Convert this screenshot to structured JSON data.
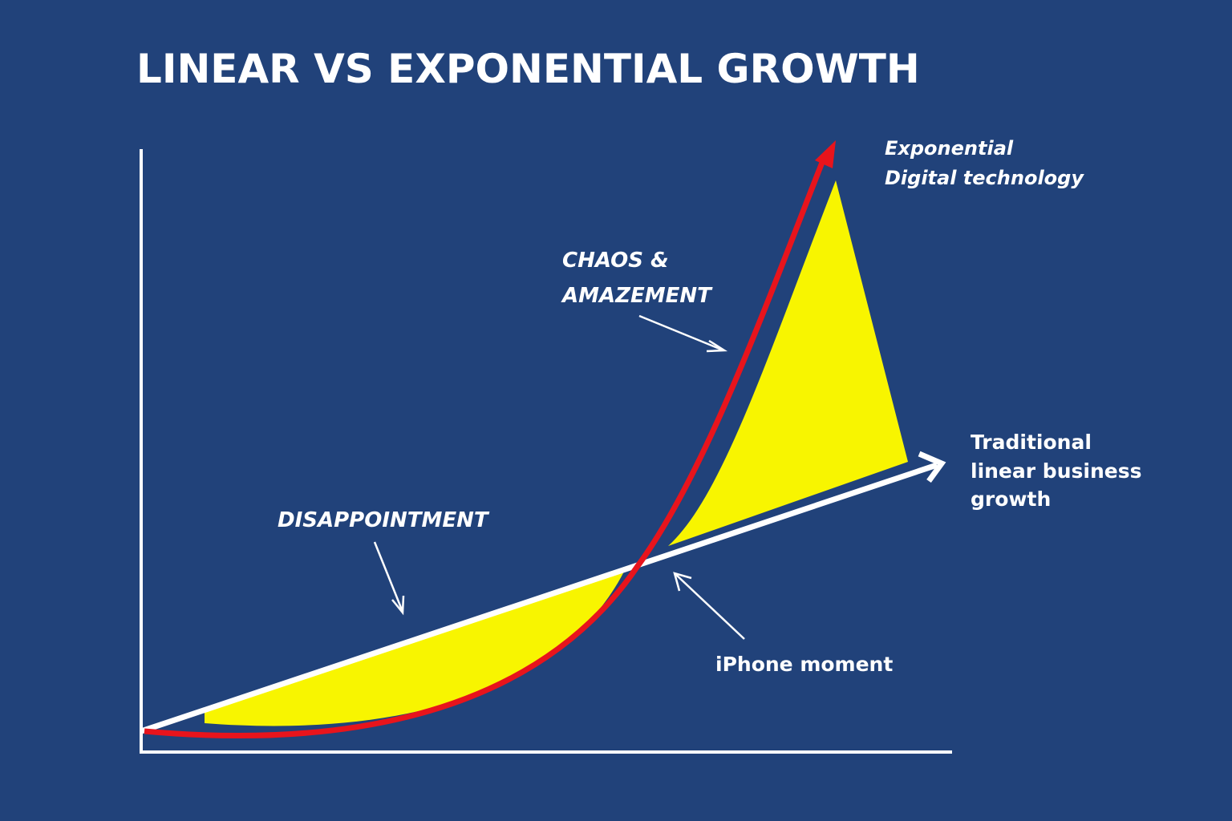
{
  "title": "LINEAR VS EXPONENTIAL GROWTH",
  "labels": {
    "exponential": [
      "Exponential",
      "Digital technology"
    ],
    "chaos": [
      "CHAOS &",
      "AMAZEMENT"
    ],
    "disappointment": "DISAPPOINTMENT",
    "linear": [
      "Traditional",
      "linear business",
      "growth"
    ],
    "iphone": "iPhone moment"
  }
}
